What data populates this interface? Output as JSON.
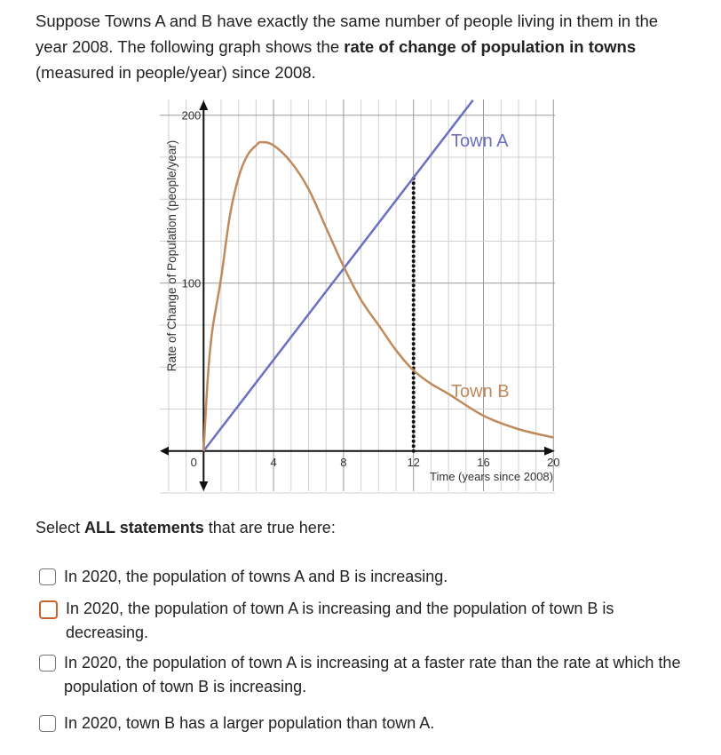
{
  "question": {
    "intro_1": "Suppose Towns A and B have exactly the same number of people living in them in the year 2008. The following graph shows the ",
    "intro_bold": "rate of change of population in towns",
    "intro_2": " (measured in people/year) since 2008.",
    "prompt_1": "Select ",
    "prompt_bold": "ALL statements",
    "prompt_2": " that are true here:",
    "options": [
      {
        "label": "In 2020, the population of towns A and B is increasing.",
        "checked": false
      },
      {
        "label": "In 2020, the population of town A is increasing and the population of town B is decreasing.",
        "checked": false
      },
      {
        "label": "In 2020, the population of town A is increasing at a faster rate than the rate at which the population of town B is increasing.",
        "checked": false
      },
      {
        "label": "In 2020, town B has a larger population than town A.",
        "checked": false
      }
    ]
  },
  "chart_data": {
    "type": "line",
    "xlabel": "Time (years since 2008)",
    "ylabel": "Rate of Change of Population (people/year)",
    "xlim": [
      -2.5,
      20
    ],
    "ylim": [
      -25,
      200
    ],
    "x_ticks": [
      "0",
      "4",
      "8",
      "12",
      "16",
      "20"
    ],
    "x_tick_values": [
      0,
      4,
      8,
      12,
      16,
      20
    ],
    "y_ticks": [
      "100",
      "200"
    ],
    "y_tick_values": [
      100,
      200
    ],
    "grid": true,
    "series": [
      {
        "name": "Town A",
        "color": "#6a6fc2",
        "x": [
          0,
          15.4
        ],
        "y": [
          0,
          209
        ]
      },
      {
        "name": "Town B",
        "color": "#c08a5c",
        "x": [
          0,
          0.25,
          0.5,
          1,
          1.5,
          2,
          2.5,
          3,
          3.3,
          4,
          5,
          6,
          7,
          8,
          9,
          10,
          11,
          12,
          13,
          14,
          16,
          18,
          20
        ],
        "y": [
          0,
          45,
          72,
          103,
          140,
          163,
          176,
          182,
          184,
          182,
          172,
          156,
          133,
          110,
          90,
          75,
          60,
          48,
          40,
          34,
          21,
          13,
          8
        ]
      }
    ],
    "annotations": [
      {
        "type": "dotted-vertical-line",
        "x": 12,
        "y_from": 0,
        "y_to": 163,
        "color": "#111111"
      }
    ]
  }
}
